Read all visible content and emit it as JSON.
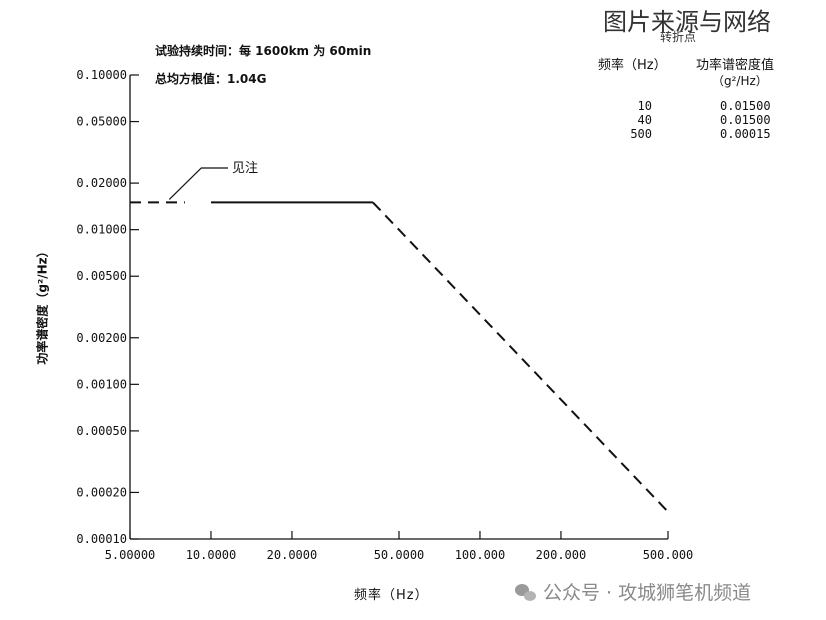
{
  "header": {
    "duration_note": "试验持续时间：每 1600km 为 60min",
    "rms_note": "总均方根值：1.04G"
  },
  "watermark_top": "图片来源与网络",
  "watermark_bottom": "公众号 · 攻城狮笔机频道",
  "breakpoints": {
    "title": "转折点",
    "col_freq_header": "频率（Hz）",
    "col_psd_header": "功率谱密度值",
    "col_psd_unit": "（g²/Hz）",
    "rows": [
      {
        "freq": "10",
        "psd": "0.01500"
      },
      {
        "freq": "40",
        "psd": "0.01500"
      },
      {
        "freq": "500",
        "psd": "0.00015"
      }
    ]
  },
  "annotation": "见注",
  "chart_data": {
    "type": "line",
    "title": "",
    "xlabel": "频率（Hz）",
    "ylabel": "功率谱密度（g²/Hz）",
    "x_scale": "log",
    "y_scale": "log",
    "xlim": [
      5,
      500
    ],
    "ylim": [
      0.0001,
      0.1
    ],
    "x_ticks": [
      5,
      10,
      20,
      50,
      100,
      200,
      500
    ],
    "x_tick_labels": [
      "5.00000",
      "10.0000",
      "20.0000",
      "50.0000",
      "100.000",
      "200.000",
      "500.000"
    ],
    "y_ticks": [
      0.1,
      0.05,
      0.02,
      0.01,
      0.005,
      0.002,
      0.001,
      0.0005,
      0.0002,
      0.0001
    ],
    "y_tick_labels": [
      "0.10000",
      "0.05000",
      "0.02000",
      "0.01000",
      "0.00500",
      "0.00200",
      "0.00100",
      "0.00050",
      "0.00020",
      "0.00010"
    ],
    "grid": false,
    "series": [
      {
        "style": "dashed",
        "x": [
          5,
          8
        ],
        "y": [
          0.015,
          0.015
        ]
      },
      {
        "style": "solid",
        "x": [
          10,
          40
        ],
        "y": [
          0.015,
          0.015
        ]
      },
      {
        "style": "dashed",
        "x": [
          40,
          500
        ],
        "y": [
          0.015,
          0.00015
        ]
      }
    ]
  }
}
